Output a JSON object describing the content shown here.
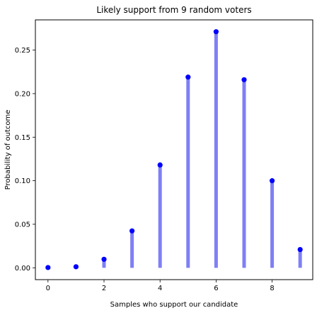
{
  "chart_data": {
    "type": "scatter",
    "title": "Likely support from 9 random voters",
    "xlabel": "Samples who support our candidate",
    "ylabel": "Probability of outcome",
    "x": [
      0,
      1,
      2,
      3,
      4,
      5,
      6,
      7,
      8,
      9
    ],
    "y": [
      0.0003,
      0.0012,
      0.0098,
      0.0424,
      0.1181,
      0.219,
      0.2711,
      0.216,
      0.1,
      0.021
    ],
    "xlim": [
      -0.45,
      9.45
    ],
    "ylim": [
      -0.0136,
      0.2847
    ],
    "xticks": [
      0,
      2,
      4,
      6,
      8
    ],
    "yticks": [
      0.0,
      0.05,
      0.1,
      0.15,
      0.2,
      0.25
    ],
    "ytick_labels": [
      "0.00",
      "0.05",
      "0.10",
      "0.15",
      "0.20",
      "0.25"
    ],
    "grid": false,
    "marker_color": "#0000ff",
    "stem_color": "#7f7ff5"
  }
}
